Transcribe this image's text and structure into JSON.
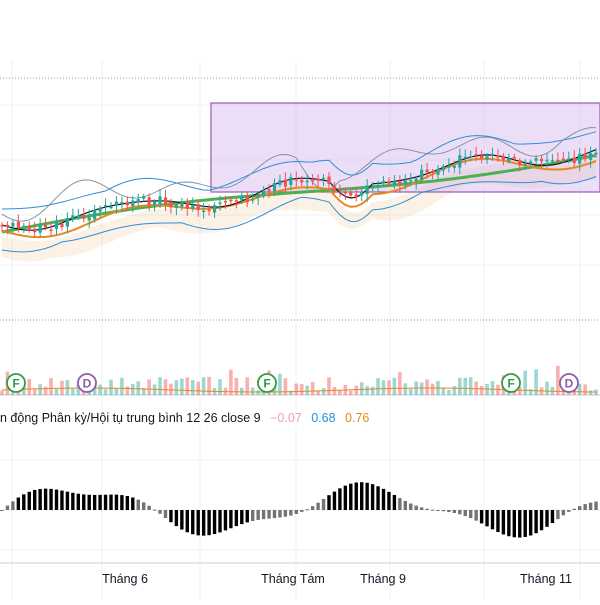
{
  "chart_data": {
    "type": "candlestick",
    "title": "",
    "x_axis": {
      "tick_labels": [
        "Tháng 6",
        "Tháng Tám",
        "Tháng 9",
        "Tháng 11"
      ]
    },
    "grid": true,
    "indicators": {
      "bollinger_bands": true,
      "ichimoku_cloud": true,
      "moving_averages": [
        "black",
        "orange",
        "green"
      ],
      "highlight_rectangle": {
        "color": "#9b59b6",
        "fill": "rgba(200,160,230,0.35)"
      }
    },
    "event_markers": [
      "F",
      "D",
      "F",
      "F",
      "D"
    ],
    "macd": {
      "label": "n động Phân kỳ/Hội tụ trung bình 12 26 close 9",
      "histogram_value": "−0.07",
      "macd_value": "0.68",
      "signal_value": "0.76",
      "colors": {
        "macd": "#2b8fd8",
        "signal": "#e8881e",
        "hist_up": "#26a69a",
        "hist_down": "#ef5350"
      }
    },
    "colors": {
      "up": "#26a69a",
      "down": "#ef5350",
      "ma_fast": "#131722",
      "ma_mid": "#e8881e",
      "ma_slow": "#4caf50",
      "bands": "#2b8fd8",
      "marker_f": "#2e9d46",
      "marker_d": "#8e5ba8"
    }
  }
}
